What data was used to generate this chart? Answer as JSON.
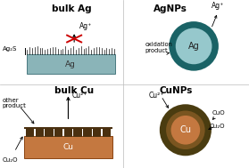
{
  "bg_color": "#ffffff",
  "bulk_ag": {
    "title": "bulk Ag",
    "ag_label": "Ag⁺",
    "ag2s_label": "Ag₂S",
    "ag_bar_color": "#8ab4b8",
    "ag_bar_edge": "#4a7a80",
    "spikes_color": "#111111",
    "cross_color": "#cc0000",
    "ag_text": "Ag",
    "ag_text_color": "#333333"
  },
  "ag_nps": {
    "title": "AgNPs",
    "ag_plus": "Ag⁺",
    "oxidation_label": "oxidation\nproduct",
    "core_color": "#96c8cc",
    "shell_color": "#1a6366",
    "ag_text": "Ag",
    "ag_text_color": "#222222"
  },
  "bulk_cu": {
    "title": "bulk Cu",
    "cu2plus": "Cu²⁺",
    "other_product": "other\nproduct",
    "cu2o_label": "Cu₂O",
    "cu_bar_color": "#c47840",
    "cu_bar_edge": "#8b4513",
    "cu2o_color": "#4a3010",
    "cu_text": "Cu",
    "cu_text_color": "#ffffff"
  },
  "cu_nps": {
    "title": "CuNPs",
    "cu2plus": "Cu²⁺",
    "cuo_label": "CuO",
    "cu2o_label": "Cu₂O",
    "core_color": "#c47840",
    "inner_shell_color": "#7a5520",
    "outer_shell_color": "#4a3c10",
    "cu_text": "Cu",
    "cu_text_color": "#ffffff"
  }
}
